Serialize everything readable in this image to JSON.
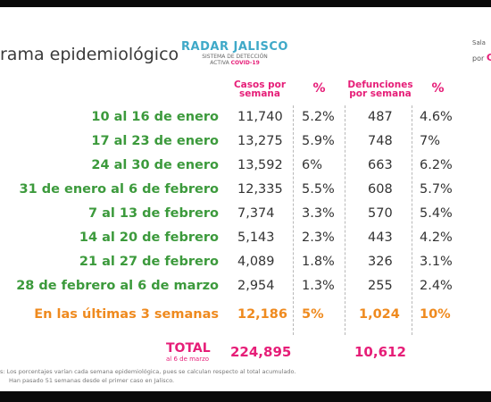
{
  "header": {
    "title": "rama epidemiológico",
    "logo_name": "RADAR JALISCO",
    "logo_sub1": "SISTEMA DE DETECCIÓN",
    "logo_sub2": "ACTIVA",
    "logo_sub3": "COVID-19",
    "sala": "Sala",
    "por": "por",
    "por_letter": "C"
  },
  "table": {
    "col_casos": "Casos por semana",
    "col_pct": "%",
    "col_def": "Defunciones por semana",
    "rows": [
      {
        "label": "10 al 16 de enero",
        "casos": "11,740",
        "pct": "5.2%",
        "def": "487",
        "dpct": "4.6%"
      },
      {
        "label": "17 al 23 de enero",
        "casos": "13,275",
        "pct": "5.9%",
        "def": "748",
        "dpct": "7%"
      },
      {
        "label": "24 al 30 de enero",
        "casos": "13,592",
        "pct": "6%",
        "def": "663",
        "dpct": "6.2%"
      },
      {
        "label": "31 de enero al 6 de febrero",
        "casos": "12,335",
        "pct": "5.5%",
        "def": "608",
        "dpct": "5.7%"
      },
      {
        "label": "7 al 13 de febrero",
        "casos": "7,374",
        "pct": "3.3%",
        "def": "570",
        "dpct": "5.4%"
      },
      {
        "label": "14 al 20 de febrero",
        "casos": "5,143",
        "pct": "2.3%",
        "def": "443",
        "dpct": "4.2%"
      },
      {
        "label": "21 al 27 de febrero",
        "casos": "4,089",
        "pct": "1.8%",
        "def": "326",
        "dpct": "3.1%"
      },
      {
        "label": "28 de febrero al 6 de marzo",
        "casos": "2,954",
        "pct": "1.3%",
        "def": "255",
        "dpct": "2.4%"
      }
    ],
    "summary": {
      "label": "En las últimas 3 semanas",
      "casos": "12,186",
      "pct": "5%",
      "def": "1,024",
      "dpct": "10%"
    },
    "total": {
      "label": "TOTAL",
      "sub": "al 6 de marzo",
      "casos": "224,895",
      "def": "10,612"
    }
  },
  "footnotes": [
    "s: Los porcentajes varían cada semana epidemiológica, pues se calculan respecto al total acumulado.",
    "Han pasado 51 semanas desde el primer caso en Jalisco."
  ]
}
